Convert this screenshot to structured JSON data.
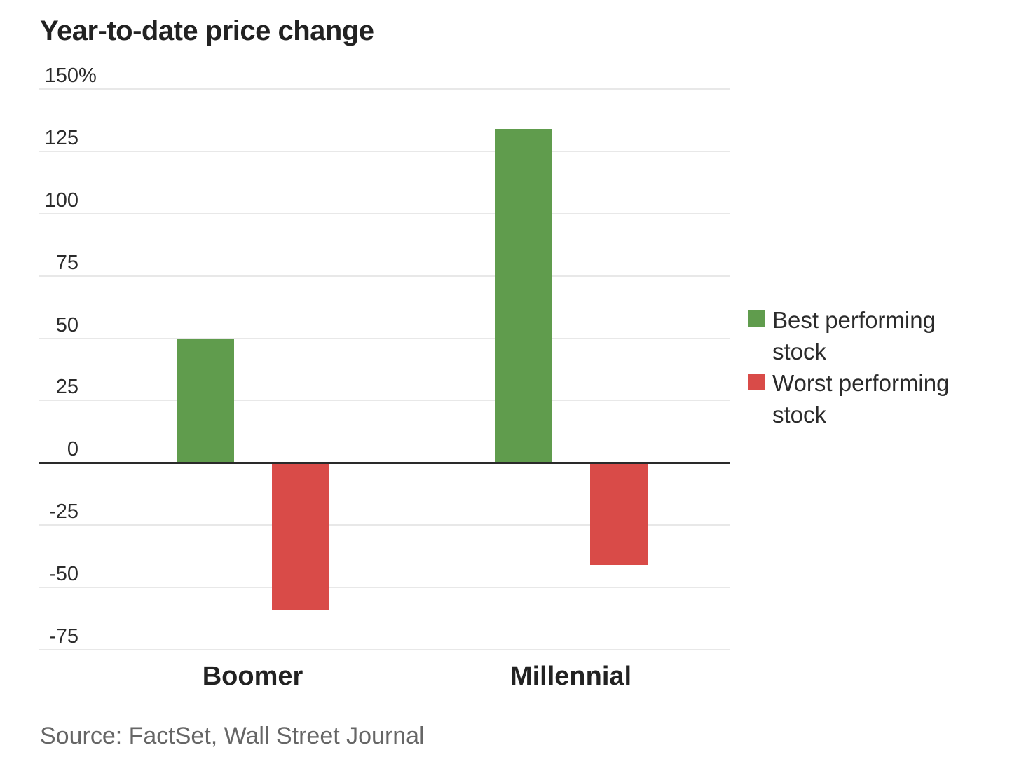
{
  "title": "Year-to-date price change",
  "source": "Source: FactSet, Wall Street Journal",
  "colors": {
    "best": "#609c4d",
    "worst": "#d94b48",
    "grid": "#e8e8e8",
    "zero_line": "#2a2a2a",
    "text": "#222222",
    "muted": "#666666"
  },
  "legend": {
    "items": [
      {
        "label": "Best performing stock",
        "color": "#609c4d"
      },
      {
        "label": "Worst performing stock",
        "color": "#d94b48"
      }
    ]
  },
  "chart_data": {
    "type": "bar",
    "title": "Year-to-date price change",
    "categories": [
      "Boomer",
      "Millennial"
    ],
    "series": [
      {
        "name": "Best performing stock",
        "color": "#609c4d",
        "values": [
          50,
          134
        ]
      },
      {
        "name": "Worst performing stock",
        "color": "#d94b48",
        "values": [
          -59,
          -41
        ]
      }
    ],
    "xlabel": "",
    "ylabel": "",
    "y_unit": "%",
    "y_ticks": [
      150,
      125,
      100,
      75,
      50,
      25,
      0,
      -25,
      -50,
      -75
    ],
    "ylim": [
      -75,
      150
    ],
    "grid": true,
    "zero_baseline": true,
    "legend_position": "right",
    "source": "Source: FactSet, Wall Street Journal"
  }
}
